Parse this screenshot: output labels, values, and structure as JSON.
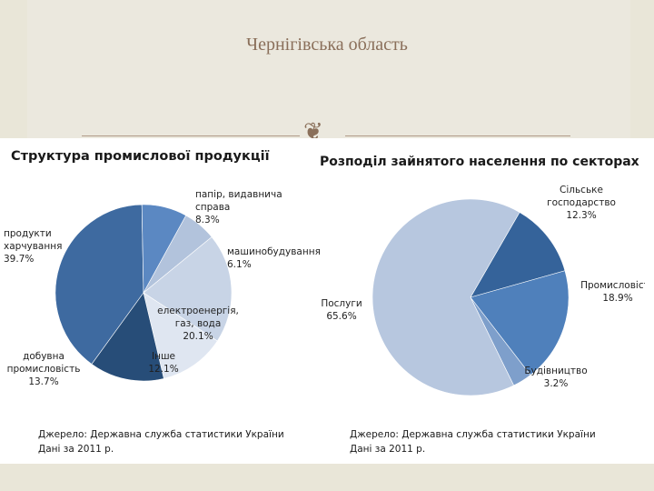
{
  "slide": {
    "title": "Чернігівська область"
  },
  "chart_data": [
    {
      "type": "pie",
      "title": "Структура промислової продукції",
      "slices": [
        {
          "label": "продукти харчування",
          "value": 39.7,
          "value_label": "39.7%",
          "color": "#3e6aa0",
          "label_lines": [
            "продукти",
            "харчування",
            "39.7%"
          ]
        },
        {
          "label": "папір, видавнича справа",
          "value": 8.3,
          "value_label": "8.3%",
          "color": "#5b88c2",
          "label_lines": [
            "папір, видавнича",
            "справа",
            "8.3%"
          ]
        },
        {
          "label": "машинобудування",
          "value": 6.1,
          "value_label": "6.1%",
          "color": "#b2c3dc",
          "label_lines": [
            "машинобудування",
            "6.1%"
          ]
        },
        {
          "label": "електроенергія, газ, вода",
          "value": 20.1,
          "value_label": "20.1%",
          "color": "#c8d4e6",
          "label_lines": [
            "електроенергія,",
            "газ, вода",
            "20.1%"
          ]
        },
        {
          "label": "Інше",
          "value": 12.1,
          "value_label": "12.1%",
          "color": "#dfe6f1",
          "label_lines": [
            "Інше",
            "12.1%"
          ]
        },
        {
          "label": "добувна промисловість",
          "value": 13.7,
          "value_label": "13.7%",
          "color": "#274d78",
          "label_lines": [
            "добувна",
            "промисловість",
            "13.7%"
          ]
        }
      ],
      "source": [
        "Джерело: Державна служба статистики України",
        "Дані за 2011 р."
      ]
    },
    {
      "type": "pie",
      "title": "Розподіл зайнятого населення по секторах",
      "slices": [
        {
          "label": "Сільське господарство",
          "value": 12.3,
          "value_label": "12.3%",
          "color": "#35639a",
          "label_lines": [
            "Сільське",
            "господарство",
            "12.3%"
          ]
        },
        {
          "label": "Промисловість",
          "value": 18.9,
          "value_label": "18.9%",
          "color": "#4f80bb",
          "label_lines": [
            "Промисловість",
            "18.9%"
          ]
        },
        {
          "label": "Будівництво",
          "value": 3.2,
          "value_label": "3.2%",
          "color": "#7e9fcb",
          "label_lines": [
            "Будівництво",
            "3.2%"
          ]
        },
        {
          "label": "Послуги",
          "value": 65.6,
          "value_label": "65.6%",
          "color": "#b7c7df",
          "label_lines": [
            "Послуги",
            "65.6%"
          ]
        }
      ],
      "source": [
        "Джерело: Державна служба статистики України",
        "Дані за 2011 р."
      ]
    }
  ]
}
